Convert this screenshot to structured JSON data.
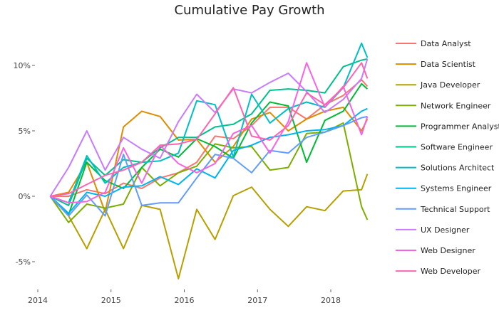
{
  "chart_data": {
    "type": "line",
    "title": "Cumulative Pay Growth",
    "xlabel": "",
    "ylabel": "",
    "xlim": [
      2013.9,
      2018.6
    ],
    "ylim": [
      -7,
      12.5
    ],
    "x_ticks": [
      2014,
      2015,
      2016,
      2017,
      2018
    ],
    "x_tick_labels": [
      "2014",
      "2015",
      "2016",
      "2017",
      "2018"
    ],
    "y_ticks": [
      -5,
      0,
      5,
      10
    ],
    "y_tick_labels": [
      "-5%",
      "0%",
      "5%",
      "10%"
    ],
    "grid": false,
    "legend_position": "right",
    "x": [
      2014.17,
      2014.42,
      2014.67,
      2014.92,
      2015.17,
      2015.42,
      2015.67,
      2015.92,
      2016.17,
      2016.42,
      2016.67,
      2016.92,
      2017.17,
      2017.42,
      2017.67,
      2017.92,
      2018.17,
      2018.42,
      2018.5
    ],
    "series": [
      {
        "name": "Data Analyst",
        "color": "#F8766D",
        "values": [
          0,
          0,
          0.5,
          0.2,
          1.0,
          0.6,
          1.4,
          1.8,
          2.6,
          4.6,
          4.4,
          5.4,
          6.8,
          6.8,
          5.9,
          7.0,
          7.7,
          8.9,
          8.4
        ]
      },
      {
        "name": "Data Scientist",
        "color": "#DE8C00",
        "values": [
          0,
          0.3,
          2.6,
          -1.2,
          5.3,
          6.5,
          6.1,
          4.3,
          4.35,
          2.6,
          3.8,
          5.9,
          6.4,
          5.0,
          5.9,
          6.5,
          6.8,
          5.0,
          5.9
        ]
      },
      {
        "name": "Java Developer",
        "color": "#B79F00",
        "values": [
          0,
          -1.5,
          -4.0,
          -1.0,
          -4.0,
          -0.7,
          -1.0,
          -6.3,
          -1.0,
          -3.3,
          0.05,
          0.7,
          -1.0,
          -2.3,
          -0.8,
          -1.1,
          0.4,
          0.5,
          1.7
        ]
      },
      {
        "name": "Network Engineer",
        "color": "#7CAE00",
        "values": [
          0,
          -2.0,
          -0.6,
          -0.9,
          -0.6,
          2.2,
          0.8,
          1.8,
          2.3,
          4.0,
          3.7,
          3.8,
          2.0,
          2.2,
          4.8,
          4.9,
          5.6,
          -0.8,
          -1.8
        ]
      },
      {
        "name": "Programmer Analyst",
        "color": "#00BA38",
        "values": [
          0,
          -1.4,
          2.6,
          1.2,
          0.6,
          2.2,
          3.6,
          3.0,
          4.4,
          3.8,
          2.9,
          5.6,
          7.2,
          6.9,
          2.6,
          5.8,
          6.5,
          8.6,
          8.2
        ]
      },
      {
        "name": "Software Engineer",
        "color": "#00C08B",
        "values": [
          0,
          -0.7,
          2.9,
          1.6,
          2.8,
          2.6,
          3.7,
          4.5,
          4.5,
          5.3,
          5.5,
          6.3,
          8.1,
          8.2,
          8.1,
          7.9,
          9.9,
          10.4,
          10.5
        ]
      },
      {
        "name": "Solutions Architect",
        "color": "#00BFC4",
        "values": [
          0,
          -0.5,
          3.1,
          1.0,
          2.2,
          2.6,
          2.7,
          3.3,
          7.3,
          7.0,
          3.0,
          7.8,
          5.6,
          6.7,
          7.2,
          6.8,
          8.3,
          11.7,
          10.6
        ]
      },
      {
        "name": "Systems Engineer",
        "color": "#00B4F0",
        "values": [
          0,
          -1.3,
          0.3,
          0.0,
          0.7,
          0.8,
          1.5,
          0.9,
          2.1,
          1.4,
          3.5,
          3.9,
          4.5,
          4.7,
          5.0,
          5.1,
          5.4,
          6.5,
          6.7
        ]
      },
      {
        "name": "Technical Support",
        "color": "#619CFF",
        "values": [
          0,
          -1.5,
          0.1,
          -1.5,
          3.2,
          -0.7,
          -0.5,
          -0.5,
          1.4,
          3.2,
          2.9,
          1.8,
          3.5,
          3.3,
          4.5,
          4.9,
          5.4,
          6.0,
          6.1
        ]
      },
      {
        "name": "UX Designer",
        "color": "#C77CFF",
        "values": [
          0,
          2.2,
          5.0,
          2.0,
          4.5,
          3.6,
          2.9,
          5.7,
          7.8,
          6.4,
          8.2,
          7.9,
          8.7,
          9.4,
          8.0,
          6.4,
          7.4,
          9.0,
          10.5
        ]
      },
      {
        "name": "Web Designer",
        "color": "#F564E3",
        "values": [
          0,
          -0.5,
          -0.4,
          0.3,
          3.7,
          1.0,
          3.9,
          2.5,
          1.8,
          2.5,
          4.8,
          5.4,
          3.3,
          5.7,
          10.2,
          6.8,
          8.4,
          4.7,
          6.1
        ]
      },
      {
        "name": "Web Developer",
        "color": "#FF64B0",
        "values": [
          0,
          0.2,
          0.9,
          1.6,
          2.0,
          2.6,
          3.9,
          4.0,
          4.35,
          6.3,
          8.3,
          4.6,
          4.3,
          5.4,
          7.9,
          7.0,
          8.3,
          10.2,
          9.0
        ]
      }
    ]
  }
}
